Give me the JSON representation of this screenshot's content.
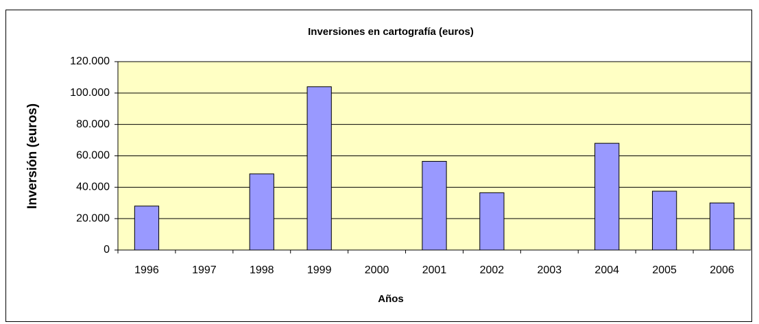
{
  "chart_data": {
    "type": "bar",
    "title": "Inversiones en cartografía (euros)",
    "xlabel": "Años",
    "ylabel": "Inversión (euros)",
    "categories": [
      "1996",
      "1997",
      "1998",
      "1999",
      "2000",
      "2001",
      "2002",
      "2003",
      "2004",
      "2005",
      "2006"
    ],
    "values": [
      28000,
      null,
      48500,
      104000,
      null,
      56500,
      36500,
      null,
      68000,
      37500,
      30000
    ],
    "color": "#9999ff",
    "ylim": [
      0,
      120000
    ],
    "yticks": [
      0,
      {
        "value": 20000,
        "label": "20.000"
      },
      {
        "value": 40000,
        "label": "40.000"
      },
      {
        "value": 60000,
        "label": "60.000"
      },
      {
        "value": 80000,
        "label": "80.000"
      },
      {
        "value": 100000,
        "label": "100.000"
      },
      {
        "value": 120000,
        "label": "120.000"
      }
    ],
    "grid": true
  }
}
